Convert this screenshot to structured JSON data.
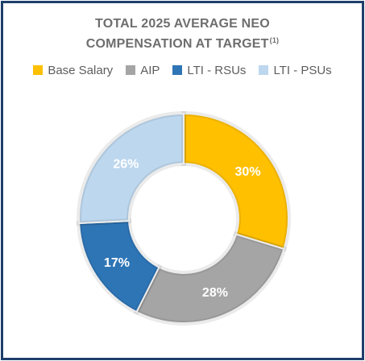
{
  "title": {
    "line1": "TOTAL 2025 AVERAGE NEO",
    "line2": "COMPENSATION AT TARGET",
    "footnote": "(1)"
  },
  "chart_data": {
    "type": "pie",
    "donut": true,
    "categories": [
      "Base Salary",
      "AIP",
      "LTI - RSUs",
      "LTI - PSUs"
    ],
    "values": [
      30,
      28,
      17,
      26
    ],
    "value_labels": [
      "30%",
      "28%",
      "17%",
      "26%"
    ],
    "colors": [
      "#ffc000",
      "#a5a5a5",
      "#2e75b6",
      "#bdd7ee"
    ],
    "legend_placement": "top"
  }
}
